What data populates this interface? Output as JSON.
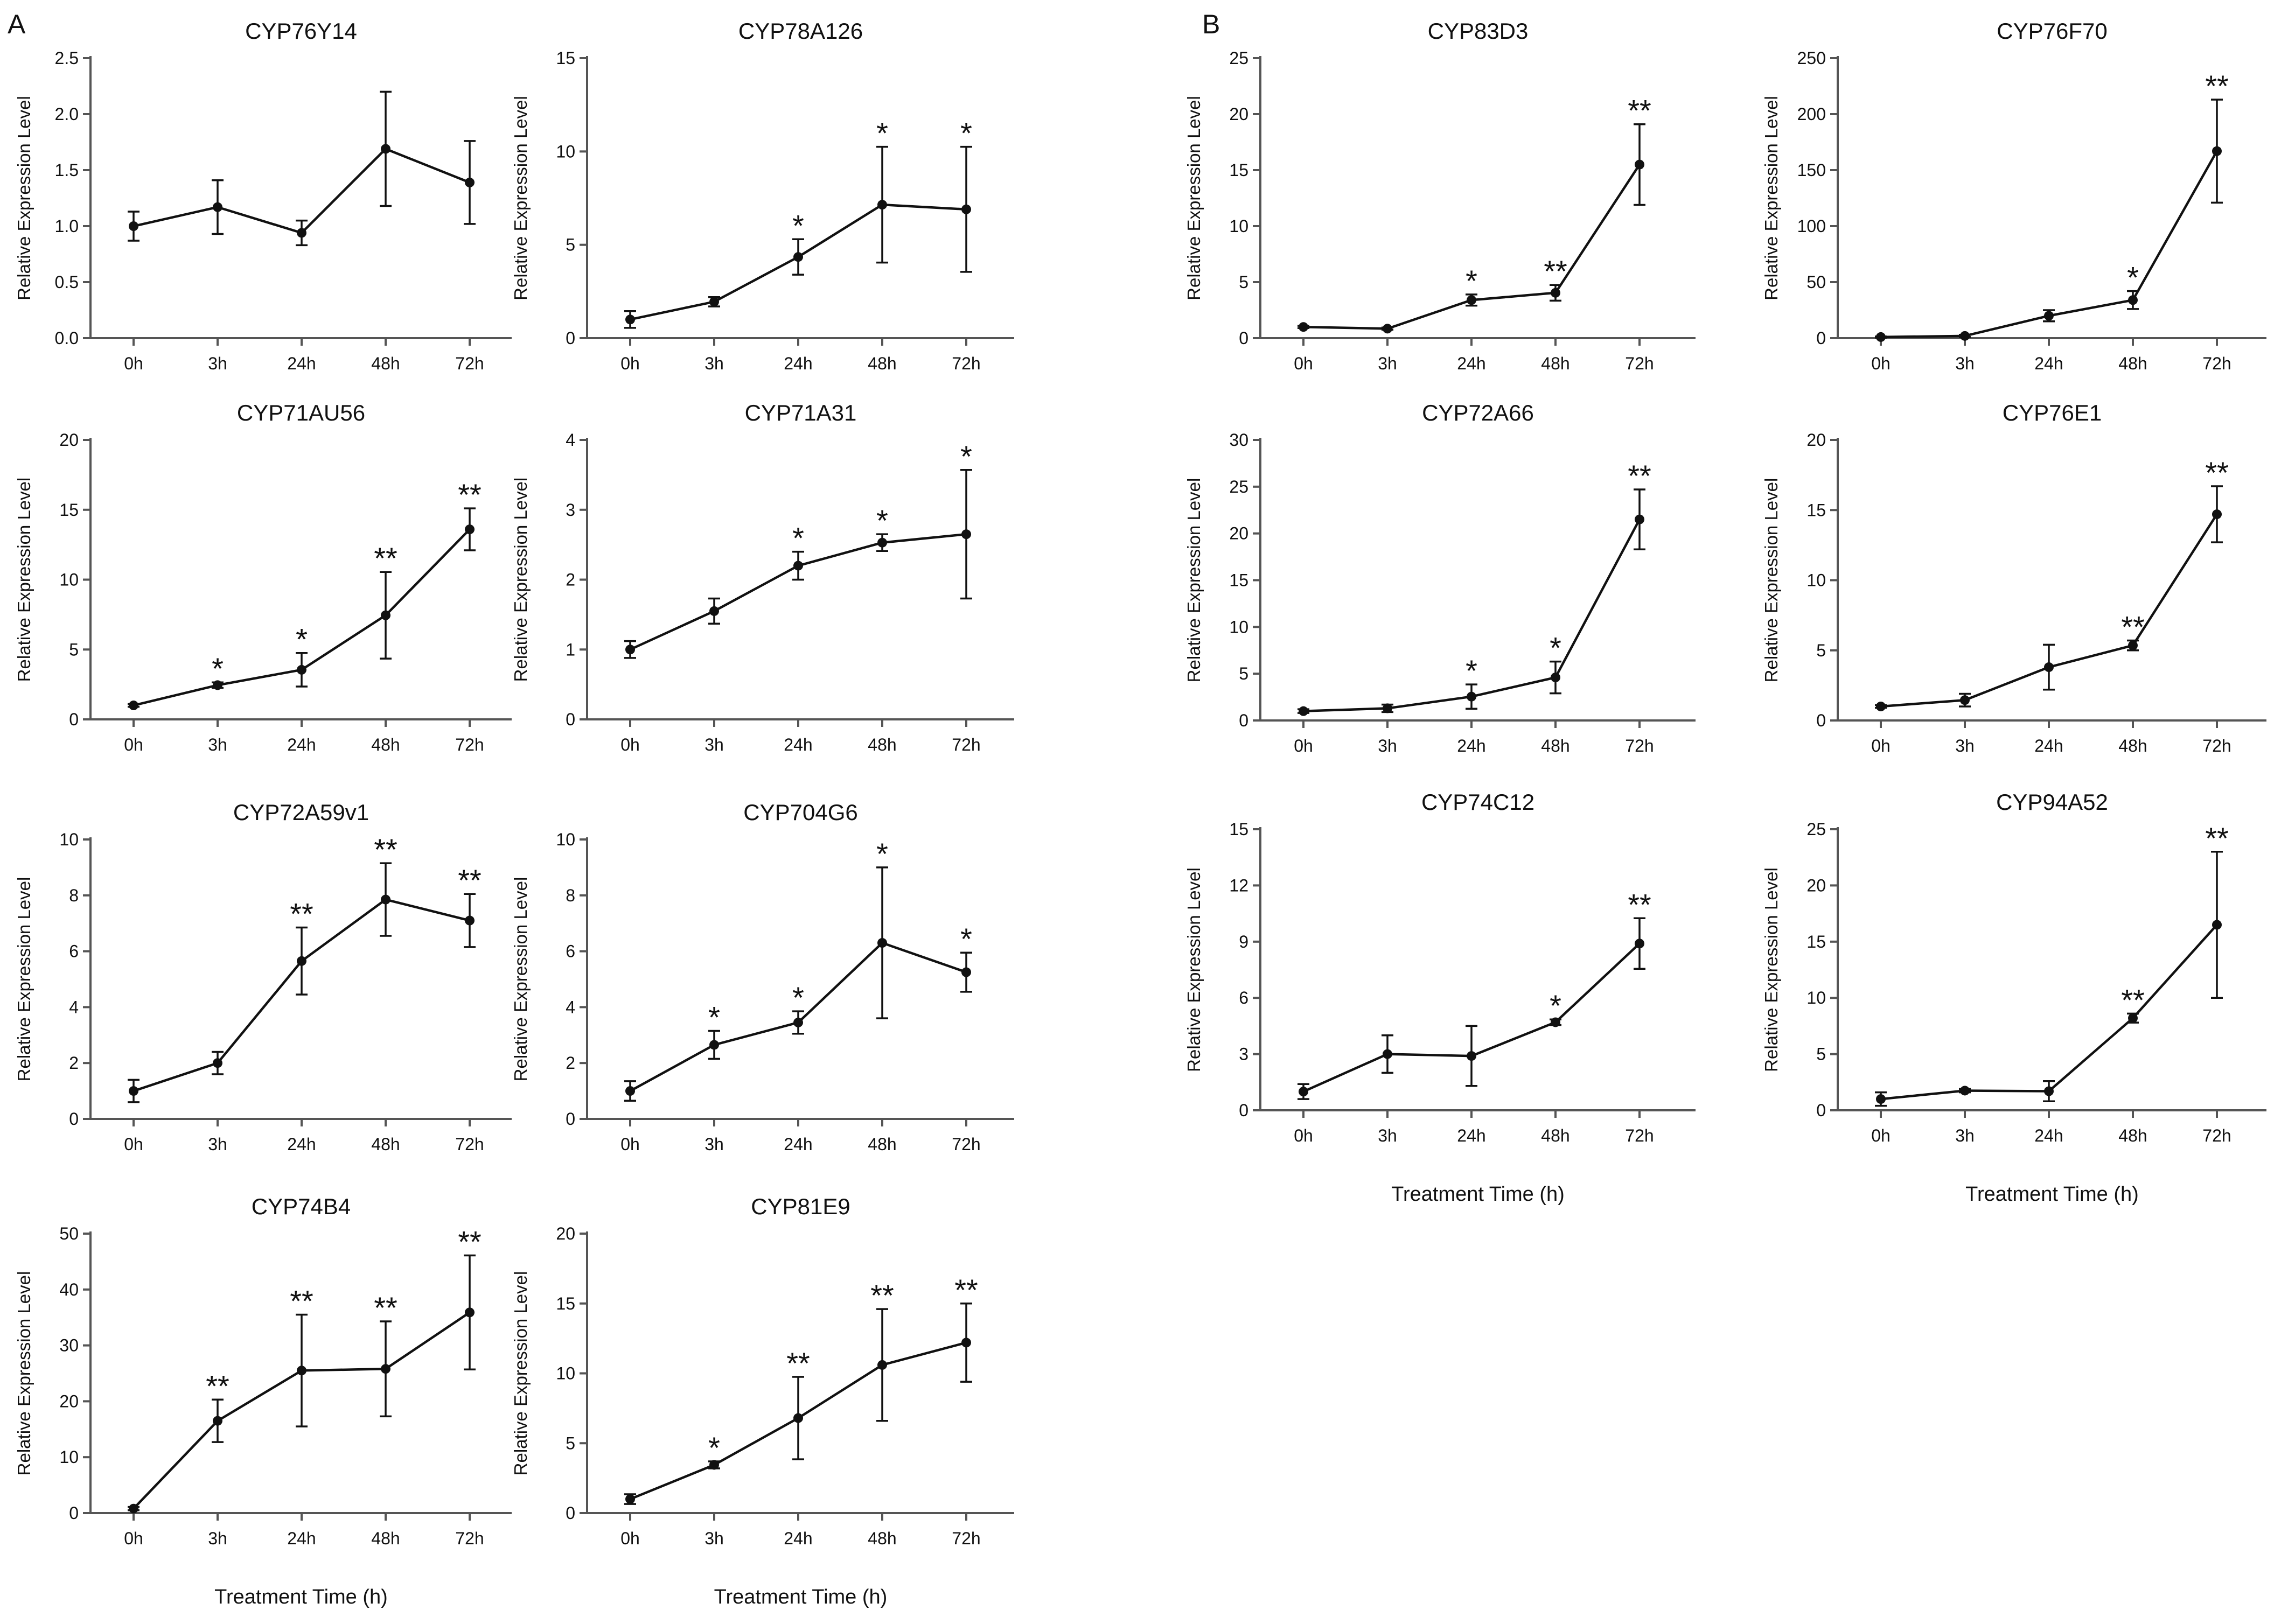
{
  "figure": {
    "panel_labels": [
      "A",
      "B"
    ],
    "x_axis_title": "Treatment Time (h)"
  },
  "chart_data": [
    {
      "type": "line",
      "title": "CYP76Y14",
      "categories": [
        "0h",
        "3h",
        "24h",
        "48h",
        "72h"
      ],
      "values": [
        1.0,
        1.17,
        0.94,
        1.69,
        1.39
      ],
      "errors": [
        0.13,
        0.24,
        0.11,
        0.51,
        0.37
      ],
      "significance": [
        "",
        "",
        "",
        "",
        ""
      ],
      "ylim": [
        0,
        2.5
      ],
      "yticks": [
        "0.0",
        "0.5",
        "1.0",
        "1.5",
        "2.0",
        "2.5"
      ],
      "ylabel": "Relative Expression Level",
      "xlabel": ""
    },
    {
      "type": "line",
      "title": "CYP78A126",
      "categories": [
        "0h",
        "3h",
        "24h",
        "48h",
        "72h"
      ],
      "values": [
        1.0,
        1.95,
        4.35,
        7.15,
        6.9
      ],
      "errors": [
        0.45,
        0.25,
        0.95,
        3.1,
        3.35
      ],
      "significance": [
        "",
        "",
        "*",
        "*",
        "*"
      ],
      "ylim": [
        0,
        15
      ],
      "yticks": [
        "0",
        "5",
        "10",
        "15"
      ],
      "ylabel": "Relative Expression Level",
      "xlabel": ""
    },
    {
      "type": "line",
      "title": "CYP71AU56",
      "categories": [
        "0h",
        "3h",
        "24h",
        "48h",
        "72h"
      ],
      "values": [
        1.0,
        2.45,
        3.55,
        7.45,
        13.6
      ],
      "errors": [
        0.1,
        0.2,
        1.2,
        3.1,
        1.5
      ],
      "significance": [
        "",
        "*",
        "*",
        "**",
        "**"
      ],
      "ylim": [
        0,
        20
      ],
      "yticks": [
        "0",
        "5",
        "10",
        "15",
        "20"
      ],
      "ylabel": "Relative Expression Level",
      "xlabel": ""
    },
    {
      "type": "line",
      "title": "CYP71A31",
      "categories": [
        "0h",
        "3h",
        "24h",
        "48h",
        "72h"
      ],
      "values": [
        1.0,
        1.55,
        2.2,
        2.53,
        2.65
      ],
      "errors": [
        0.12,
        0.18,
        0.2,
        0.12,
        0.92
      ],
      "significance": [
        "",
        "",
        "*",
        "*",
        "*"
      ],
      "ylim": [
        0,
        4
      ],
      "yticks": [
        "0",
        "1",
        "2",
        "3",
        "4"
      ],
      "ylabel": "Relative Expression Level",
      "xlabel": ""
    },
    {
      "type": "line",
      "title": "CYP72A59v1",
      "categories": [
        "0h",
        "3h",
        "24h",
        "48h",
        "72h"
      ],
      "values": [
        1.0,
        2.0,
        5.65,
        7.85,
        7.1
      ],
      "errors": [
        0.4,
        0.4,
        1.2,
        1.3,
        0.95
      ],
      "significance": [
        "",
        "",
        "**",
        "**",
        "**"
      ],
      "ylim": [
        0,
        10
      ],
      "yticks": [
        "0",
        "2",
        "4",
        "6",
        "8",
        "10"
      ],
      "ylabel": "Relative Expression Level",
      "xlabel": ""
    },
    {
      "type": "line",
      "title": "CYP704G6",
      "categories": [
        "0h",
        "3h",
        "24h",
        "48h",
        "72h"
      ],
      "values": [
        1.0,
        2.65,
        3.45,
        6.3,
        5.25
      ],
      "errors": [
        0.35,
        0.5,
        0.4,
        2.7,
        0.7
      ],
      "significance": [
        "",
        "*",
        "*",
        "*",
        "*"
      ],
      "ylim": [
        0,
        10
      ],
      "yticks": [
        "0",
        "2",
        "4",
        "6",
        "8",
        "10"
      ],
      "ylabel": "Relative Expression Level",
      "xlabel": ""
    },
    {
      "type": "line",
      "title": "CYP74B4",
      "categories": [
        "0h",
        "3h",
        "24h",
        "48h",
        "72h"
      ],
      "values": [
        0.8,
        16.5,
        25.5,
        25.8,
        35.9
      ],
      "errors": [
        0.3,
        3.8,
        10.0,
        8.5,
        10.2
      ],
      "significance": [
        "",
        "**",
        "**",
        "**",
        "**"
      ],
      "ylim": [
        0,
        50
      ],
      "yticks": [
        "0",
        "10",
        "20",
        "30",
        "40",
        "50"
      ],
      "ylabel": "Relative Expression Level",
      "xlabel": "Treatment Time (h)"
    },
    {
      "type": "line",
      "title": "CYP81E9",
      "categories": [
        "0h",
        "3h",
        "24h",
        "48h",
        "72h"
      ],
      "values": [
        1.0,
        3.45,
        6.8,
        10.6,
        12.2
      ],
      "errors": [
        0.35,
        0.25,
        2.95,
        4.0,
        2.8
      ],
      "significance": [
        "",
        "*",
        "**",
        "**",
        "**"
      ],
      "ylim": [
        0,
        20
      ],
      "yticks": [
        "0",
        "5",
        "10",
        "15",
        "20"
      ],
      "ylabel": "Relative Expression Level",
      "xlabel": "Treatment Time (h)"
    },
    {
      "type": "line",
      "title": "CYP83D3",
      "categories": [
        "0h",
        "3h",
        "24h",
        "48h",
        "72h"
      ],
      "values": [
        1.0,
        0.85,
        3.4,
        4.05,
        15.5
      ],
      "errors": [
        0.1,
        0.1,
        0.5,
        0.7,
        3.6
      ],
      "significance": [
        "",
        "",
        "*",
        "**",
        "**"
      ],
      "ylim": [
        0,
        25
      ],
      "yticks": [
        "0",
        "5",
        "10",
        "15",
        "20",
        "25"
      ],
      "ylabel": "Relative Expression Level",
      "xlabel": ""
    },
    {
      "type": "line",
      "title": "CYP76F70",
      "categories": [
        "0h",
        "3h",
        "24h",
        "48h",
        "72h"
      ],
      "values": [
        1.0,
        2.0,
        20.0,
        34.0,
        167.0
      ],
      "errors": [
        0.5,
        1.0,
        5.0,
        8.0,
        46.0
      ],
      "significance": [
        "",
        "",
        "",
        "*",
        "**"
      ],
      "ylim": [
        0,
        250
      ],
      "yticks": [
        "0",
        "50",
        "100",
        "150",
        "200",
        "250"
      ],
      "ylabel": "Relative Expression Level",
      "xlabel": ""
    },
    {
      "type": "line",
      "title": "CYP72A66",
      "categories": [
        "0h",
        "3h",
        "24h",
        "48h",
        "72h"
      ],
      "values": [
        1.0,
        1.3,
        2.55,
        4.6,
        21.5
      ],
      "errors": [
        0.2,
        0.4,
        1.3,
        1.7,
        3.2
      ],
      "significance": [
        "",
        "",
        "*",
        "*",
        "**"
      ],
      "ylim": [
        0,
        30
      ],
      "yticks": [
        "0",
        "5",
        "10",
        "15",
        "20",
        "25",
        "30"
      ],
      "ylabel": "Relative Expression Level",
      "xlabel": ""
    },
    {
      "type": "line",
      "title": "CYP76E1",
      "categories": [
        "0h",
        "3h",
        "24h",
        "48h",
        "72h"
      ],
      "values": [
        1.0,
        1.45,
        3.8,
        5.35,
        14.7
      ],
      "errors": [
        0.1,
        0.45,
        1.6,
        0.35,
        2.0
      ],
      "significance": [
        "",
        "",
        "",
        "**",
        "**"
      ],
      "ylim": [
        0,
        20
      ],
      "yticks": [
        "0",
        "5",
        "10",
        "15",
        "20"
      ],
      "ylabel": "Relative Expression Level",
      "xlabel": ""
    },
    {
      "type": "line",
      "title": "CYP74C12",
      "categories": [
        "0h",
        "3h",
        "24h",
        "48h",
        "72h"
      ],
      "values": [
        1.0,
        3.0,
        2.9,
        4.7,
        8.9
      ],
      "errors": [
        0.4,
        1.0,
        1.6,
        0.15,
        1.35
      ],
      "significance": [
        "",
        "",
        "",
        "*",
        "**"
      ],
      "ylim": [
        0,
        15
      ],
      "yticks": [
        "0",
        "3",
        "6",
        "9",
        "12",
        "15"
      ],
      "ylabel": "Relative Expression Level",
      "xlabel": "Treatment Time (h)"
    },
    {
      "type": "line",
      "title": "CYP94A52",
      "categories": [
        "0h",
        "3h",
        "24h",
        "48h",
        "72h"
      ],
      "values": [
        1.0,
        1.75,
        1.7,
        8.2,
        16.5
      ],
      "errors": [
        0.6,
        0.15,
        0.9,
        0.4,
        6.5
      ],
      "significance": [
        "",
        "",
        "",
        "**",
        "**"
      ],
      "ylim": [
        0,
        25
      ],
      "yticks": [
        "0",
        "5",
        "10",
        "15",
        "20",
        "25"
      ],
      "ylabel": "Relative Expression Level",
      "xlabel": "Treatment Time (h)"
    }
  ]
}
